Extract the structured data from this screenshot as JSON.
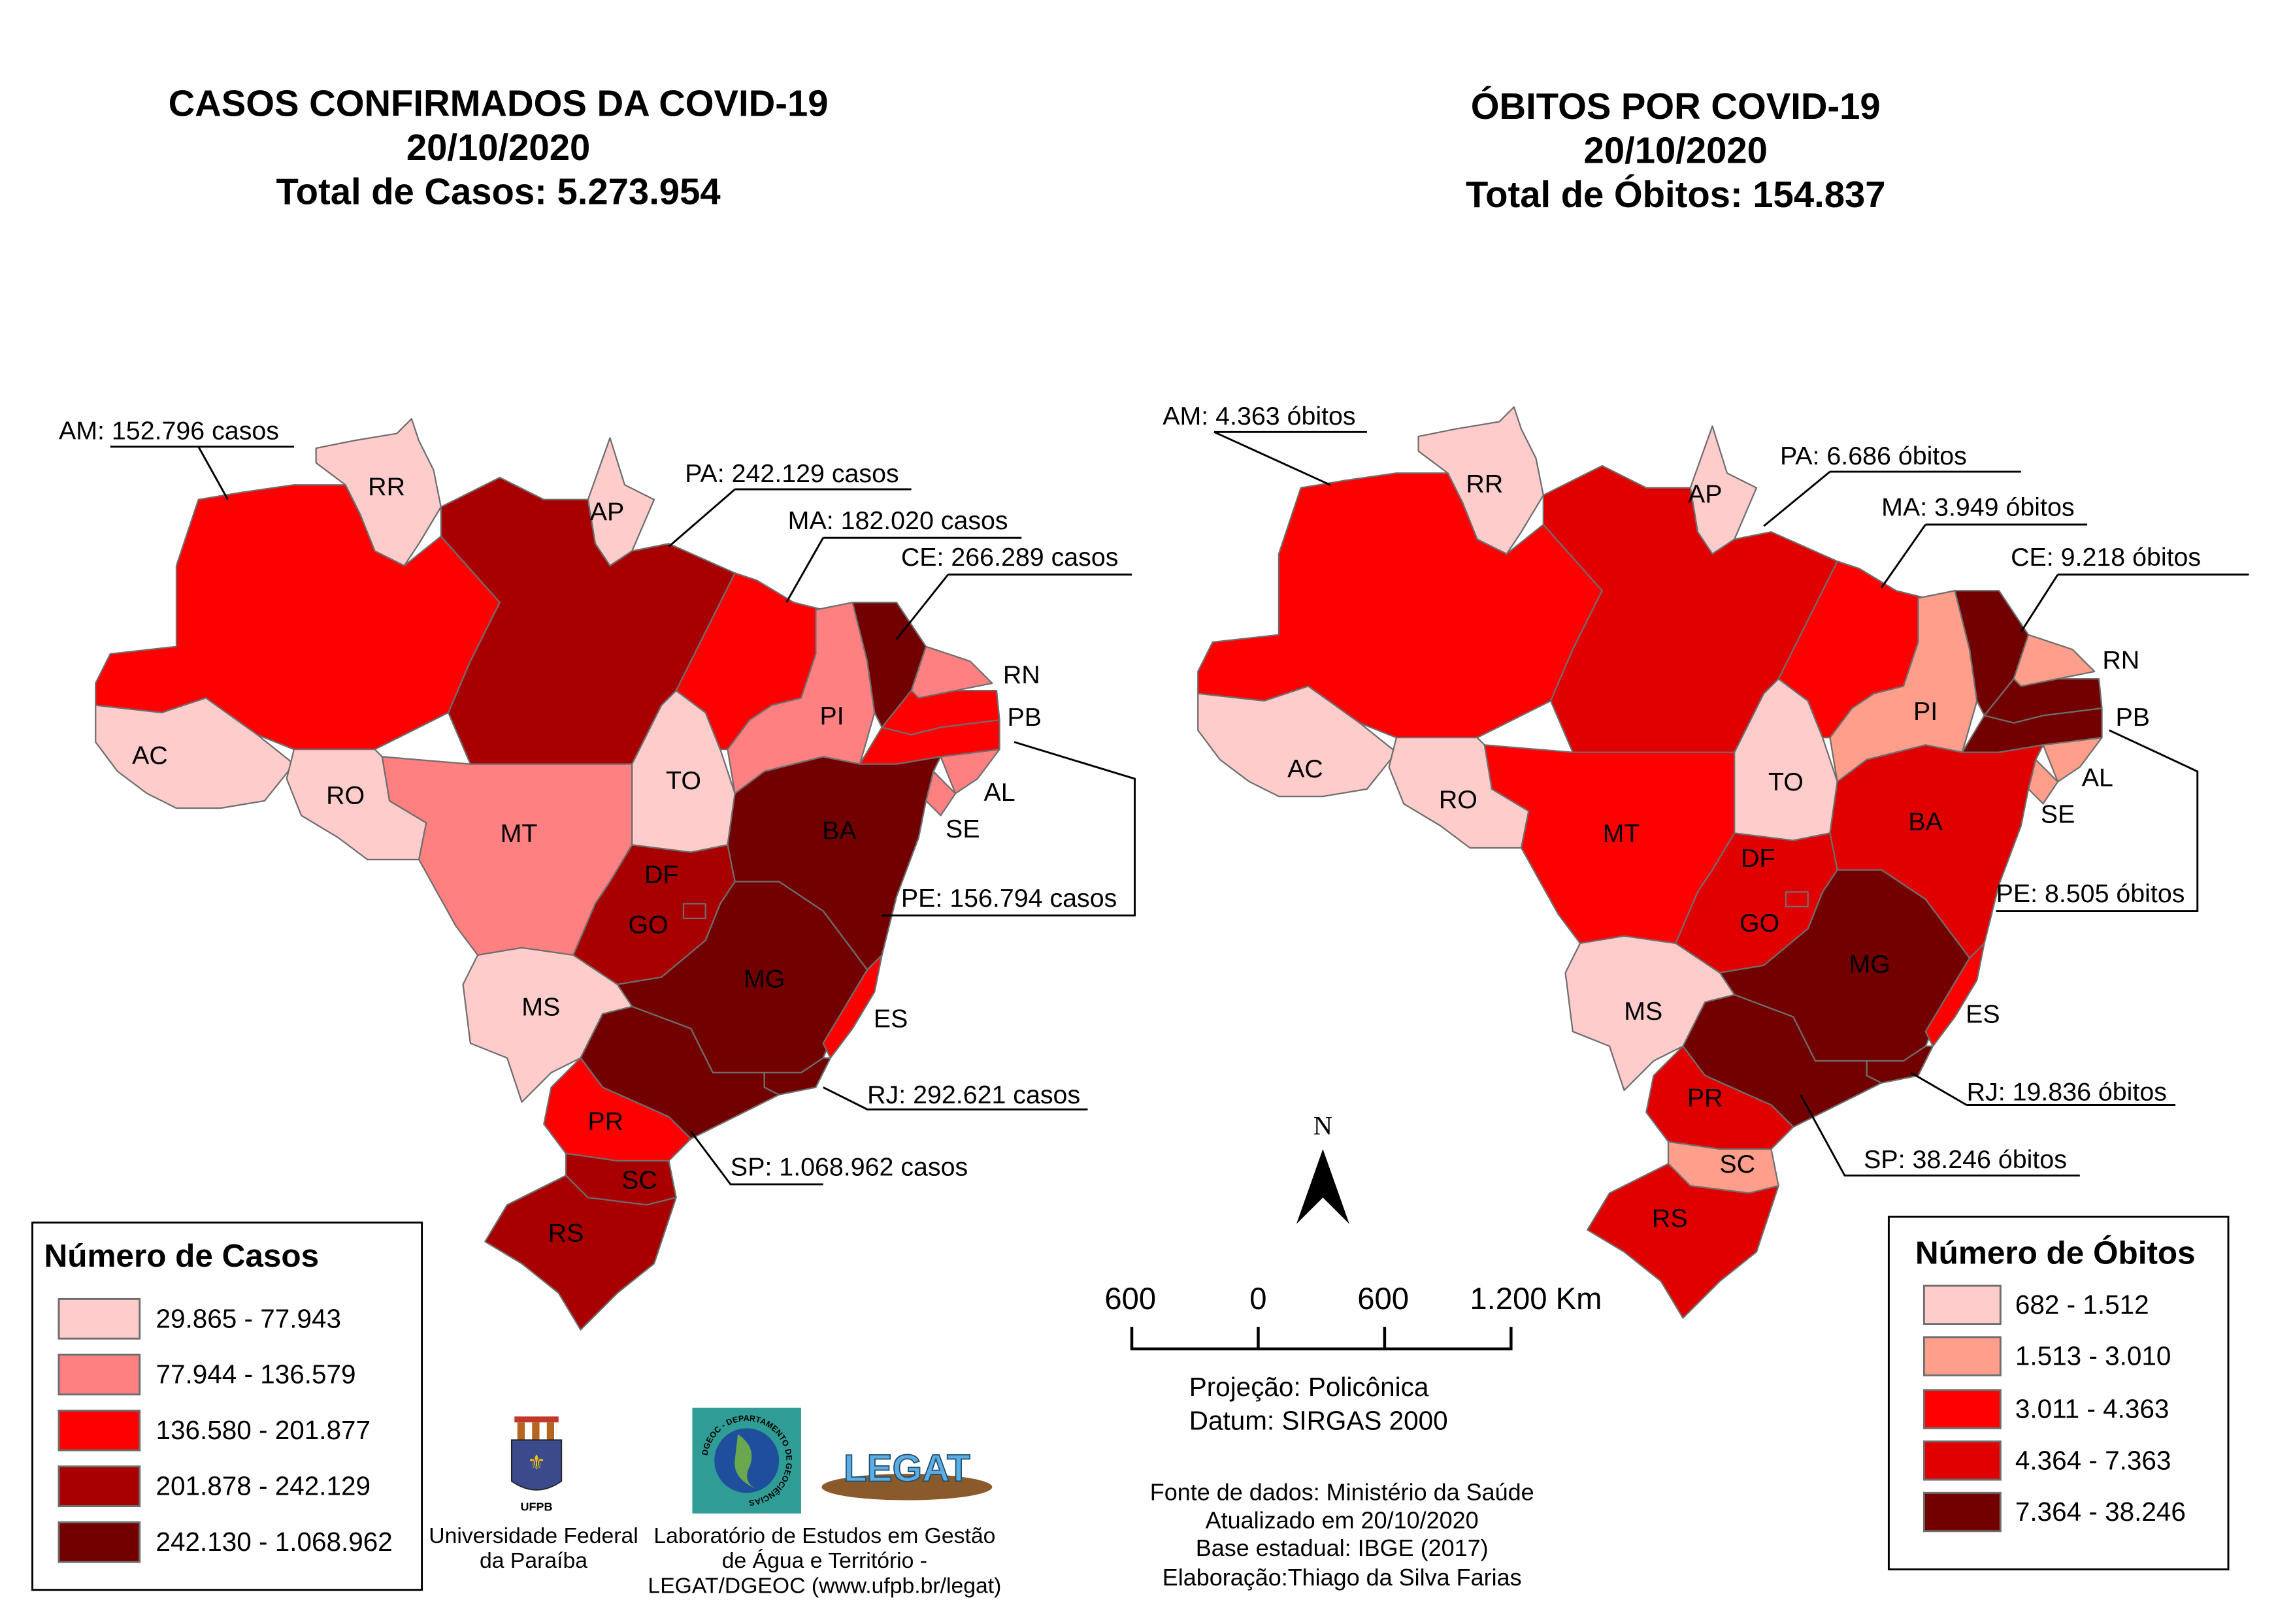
{
  "colors": {
    "cases": [
      "#FFCCCC",
      "#FF8080",
      "#FF0000",
      "#A80000",
      "#730000"
    ],
    "deaths": [
      "#FFCCCC",
      "#FF9E8A",
      "#FF0000",
      "#E00000",
      "#730000"
    ]
  },
  "cases_map": {
    "title": "CASOS CONFIRMADOS DA COVID-19",
    "date": "20/10/2020",
    "total": "Total de Casos: 5.273.954",
    "classes": {
      "AC": 0,
      "AM": 2,
      "RR": 0,
      "AP": 0,
      "PA": 3,
      "RO": 0,
      "MT": 1,
      "TO": 0,
      "MA": 2,
      "PI": 1,
      "CE": 4,
      "RN": 1,
      "PB": 2,
      "PE": 2,
      "AL": 1,
      "SE": 1,
      "BA": 4,
      "GO": 3,
      "DF": 3,
      "MG": 4,
      "ES": 2,
      "MS": 0,
      "RJ": 4,
      "SP": 4,
      "PR": 2,
      "SC": 3,
      "RS": 3
    },
    "state_labels": {
      "RR": "RR",
      "AP": "AP",
      "AC": "AC",
      "RO": "RO",
      "MT": "MT",
      "TO": "TO",
      "PI": "PI",
      "BA": "BA",
      "DF": "DF",
      "GO": "GO",
      "MG": "MG",
      "MS": "MS",
      "PR": "PR",
      "SC": "SC",
      "RS": "RS",
      "RN": "RN",
      "PB": "PB",
      "AL": "AL",
      "SE": "SE",
      "ES": "ES"
    },
    "callouts": {
      "AM": "AM: 152.796 casos",
      "PA": "PA: 242.129 casos",
      "MA": "MA: 182.020 casos",
      "CE": "CE: 266.289 casos",
      "PE": "PE: 156.794 casos",
      "RJ": "RJ: 292.621 casos",
      "SP": "SP: 1.068.962 casos"
    },
    "legend": {
      "title": "Número de Casos",
      "items": [
        "29.865 - 77.943",
        "77.944 - 136.579",
        "136.580 - 201.877",
        "201.878 - 242.129",
        "242.130 - 1.068.962"
      ]
    }
  },
  "deaths_map": {
    "title": "ÓBITOS POR COVID-19",
    "date": "20/10/2020",
    "total": "Total de Óbitos: 154.837",
    "classes": {
      "AC": 0,
      "AM": 2,
      "RR": 0,
      "AP": 0,
      "PA": 3,
      "RO": 0,
      "MT": 2,
      "TO": 0,
      "MA": 2,
      "PI": 1,
      "CE": 4,
      "RN": 1,
      "PB": 4,
      "PE": 4,
      "AL": 1,
      "SE": 1,
      "BA": 3,
      "GO": 3,
      "DF": 3,
      "MG": 4,
      "ES": 2,
      "MS": 0,
      "RJ": 4,
      "SP": 4,
      "PR": 3,
      "SC": 1,
      "RS": 3
    },
    "state_labels": {
      "RR": "RR",
      "AP": "AP",
      "AC": "AC",
      "RO": "RO",
      "MT": "MT",
      "TO": "TO",
      "PI": "PI",
      "BA": "BA",
      "DF": "DF",
      "GO": "GO",
      "MG": "MG",
      "MS": "MS",
      "PR": "PR",
      "SC": "SC",
      "RS": "RS",
      "RN": "RN",
      "PB": "PB",
      "AL": "AL",
      "SE": "SE",
      "ES": "ES"
    },
    "callouts": {
      "AM": "AM: 4.363 óbitos",
      "PA": "PA: 6.686 óbitos",
      "MA": "MA: 3.949 óbitos",
      "CE": "CE: 9.218 óbitos",
      "PE": "PE: 8.505 óbitos",
      "RJ": "RJ: 19.836 óbitos",
      "SP": "SP: 38.246 óbitos"
    },
    "legend": {
      "title": "Número de Óbitos",
      "items": [
        "682 - 1.512",
        "1.513 - 3.010",
        "3.011 - 4.363",
        "4.364 - 7.363",
        "7.364 - 38.246"
      ]
    }
  },
  "north_arrow": {
    "label": "N"
  },
  "scale_bar": {
    "labels": [
      "600",
      "0",
      "600",
      "1.200 Km"
    ]
  },
  "projection": {
    "line1": "Projeção: Policônica",
    "line2": "Datum: SIRGAS 2000"
  },
  "credits": [
    "Fonte de dados: Ministério da Saúde",
    "Atualizado em 20/10/2020",
    "Base estadual: IBGE (2017)",
    "Elaboração:Thiago da Silva Farias"
  ],
  "logos": {
    "ufpb_text": "UFPB",
    "ufpb_caption": [
      "Universidade Federal",
      "da Paraíba"
    ],
    "legat_text": "LEGAT",
    "dgeoc_text": "DGEOC - DEPARTAMENTO DE GEOCIÊNCIAS",
    "legat_caption": [
      "Laboratório de Estudos em Gestão",
      "de Água e Território -",
      "LEGAT/DGEOC (www.ufpb.br/legat)"
    ]
  }
}
